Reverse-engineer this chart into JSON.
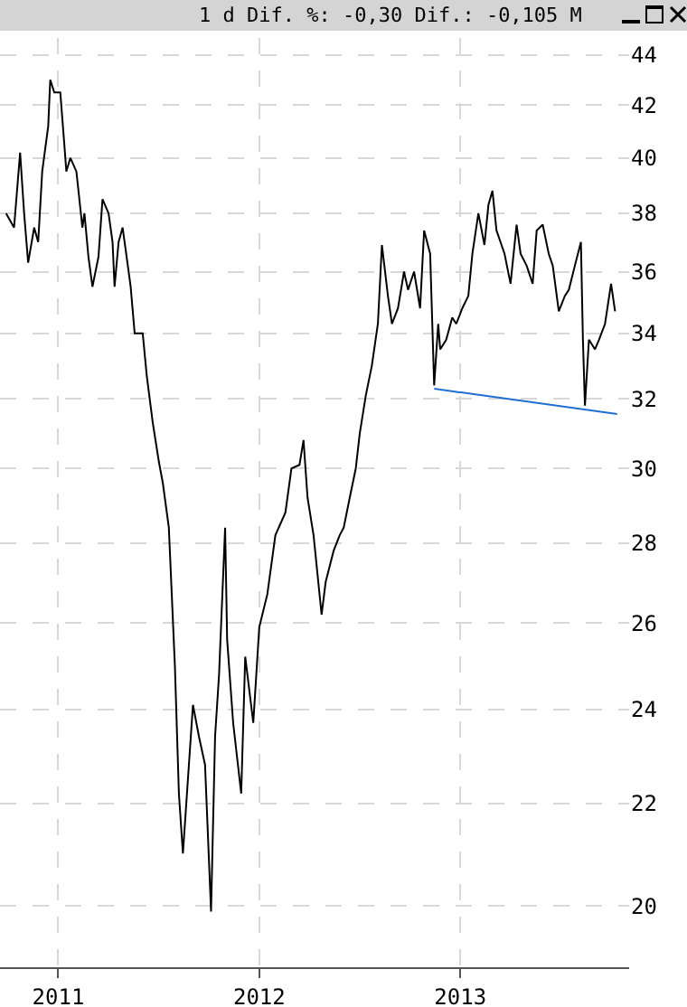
{
  "chart_data": {
    "type": "line",
    "title": "1 d Dif. %: -0,30 Dif.: -0,105 M",
    "log": "y",
    "grid": true,
    "marker": "none",
    "line_style": "solid",
    "xlim": [
      2010.71,
      2013.84
    ],
    "xticks": [
      2011,
      2012,
      2013
    ],
    "ylim": [
      18.9,
      44.7
    ],
    "yticks": [
      20,
      22,
      24,
      26,
      28,
      30,
      32,
      34,
      36,
      38,
      40,
      42,
      44
    ],
    "series": [
      {
        "color": "#000000",
        "x": [
          2010.74,
          2010.78,
          2010.81,
          2010.83,
          2010.85,
          2010.88,
          2010.9,
          2010.92,
          2010.95,
          2010.96,
          2010.98,
          2011.01,
          2011.03,
          2011.04,
          2011.06,
          2011.09,
          2011.12,
          2011.13,
          2011.15,
          2011.17,
          2011.2,
          2011.22,
          2011.25,
          2011.27,
          2011.28,
          2011.3,
          2011.32,
          2011.34,
          2011.36,
          2011.38,
          2011.42,
          2011.44,
          2011.47,
          2011.5,
          2011.52,
          2011.55,
          2011.58,
          2011.6,
          2011.62,
          2011.67,
          2011.7,
          2011.73,
          2011.76,
          2011.78,
          2011.8,
          2011.83,
          2011.84,
          2011.87,
          2011.91,
          2011.93,
          2011.97,
          2012.0,
          2012.04,
          2012.08,
          2012.13,
          2012.16,
          2012.2,
          2012.22,
          2012.24,
          2012.27,
          2012.31,
          2012.33,
          2012.37,
          2012.4,
          2012.42,
          2012.45,
          2012.48,
          2012.5,
          2012.53,
          2012.56,
          2012.59,
          2012.61,
          2012.64,
          2012.66,
          2012.69,
          2012.72,
          2012.74,
          2012.77,
          2012.8,
          2012.82,
          2012.85,
          2012.87,
          2012.89,
          2012.9,
          2012.93,
          2012.96,
          2012.98,
          2013.01,
          2013.04,
          2013.06,
          2013.09,
          2013.12,
          2013.14,
          2013.16,
          2013.18,
          2013.2,
          2013.22,
          2013.25,
          2013.28,
          2013.3,
          2013.33,
          2013.36,
          2013.38,
          2013.41,
          2013.44,
          2013.46,
          2013.49,
          2013.52,
          2013.54,
          2013.57,
          2013.6,
          2013.61,
          2013.62,
          2013.64,
          2013.67,
          2013.69,
          2013.72,
          2013.75,
          2013.77
        ],
        "values": [
          38,
          37.5,
          40.2,
          38,
          36.3,
          37.5,
          37,
          39.5,
          41.2,
          43,
          42.5,
          42.5,
          40.5,
          39.5,
          40,
          39.5,
          37.5,
          38,
          36.5,
          35.5,
          36.5,
          38.5,
          38,
          37,
          35.5,
          37,
          37.5,
          36.5,
          35.5,
          34,
          34,
          32.7,
          31.3,
          30.2,
          29.6,
          28.4,
          25,
          22.2,
          21,
          24.1,
          23.4,
          22.8,
          19.9,
          23.4,
          24.8,
          28.4,
          25.6,
          23.7,
          22.2,
          25.2,
          23.7,
          25.9,
          26.7,
          28.2,
          28.8,
          30,
          30.1,
          30.8,
          29.2,
          28.2,
          26.2,
          27,
          27.8,
          28.2,
          28.4,
          29.2,
          30,
          31,
          32.1,
          33,
          34.3,
          36.9,
          35.2,
          34.3,
          34.8,
          36,
          35.4,
          36,
          34.8,
          37.4,
          36.6,
          32.4,
          34.3,
          33.5,
          33.8,
          34.5,
          34.3,
          34.8,
          35.2,
          36.6,
          38,
          36.9,
          38.3,
          38.8,
          37.4,
          37,
          36.6,
          35.6,
          37.6,
          36.6,
          36.2,
          35.6,
          37.4,
          37.6,
          36.6,
          36.2,
          34.7,
          35.2,
          35.4,
          36.2,
          37,
          33.8,
          31.8,
          33.8,
          33.5,
          33.8,
          34.3,
          35.6,
          34.7
        ]
      },
      {
        "type": "line",
        "color": "#1e6fd0",
        "x": [
          2012.87,
          2013.78
        ],
        "values": [
          32.3,
          31.55
        ]
      }
    ]
  }
}
